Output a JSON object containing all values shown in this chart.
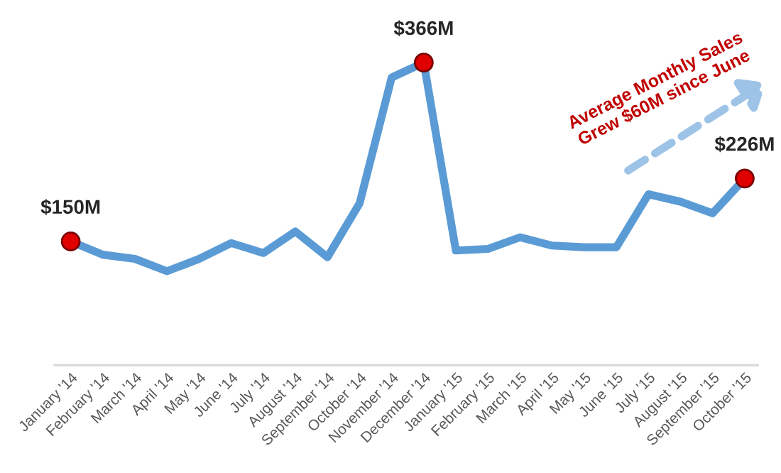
{
  "chart_data": {
    "type": "line",
    "categories": [
      "January '14",
      "February '14",
      "March '14",
      "April '14",
      "May '14",
      "June '14",
      "July '14",
      "August '14",
      "September '14",
      "October '14",
      "November '14",
      "December '14",
      "January '15",
      "February '15",
      "March '15",
      "April '15",
      "May '15",
      "June '15",
      "July '15",
      "August '15",
      "September '15",
      "October '15"
    ],
    "series": [
      {
        "color": "#5b9bd5",
        "values": [
          150,
          134,
          129,
          114,
          129,
          148,
          136,
          162,
          131,
          196,
          348,
          366,
          139,
          141,
          155,
          145,
          143,
          143,
          207,
          198,
          184,
          226
        ],
        "value_labels": [
          "$150M",
          null,
          null,
          null,
          null,
          null,
          null,
          null,
          null,
          null,
          null,
          "$366M",
          null,
          null,
          null,
          null,
          null,
          null,
          null,
          null,
          null,
          "$226M"
        ]
      }
    ],
    "tick_labels": "x",
    "grid": false,
    "legend": false,
    "annotations": [
      "Average Monthly Sales\nGrew $60M since June"
    ]
  }
}
